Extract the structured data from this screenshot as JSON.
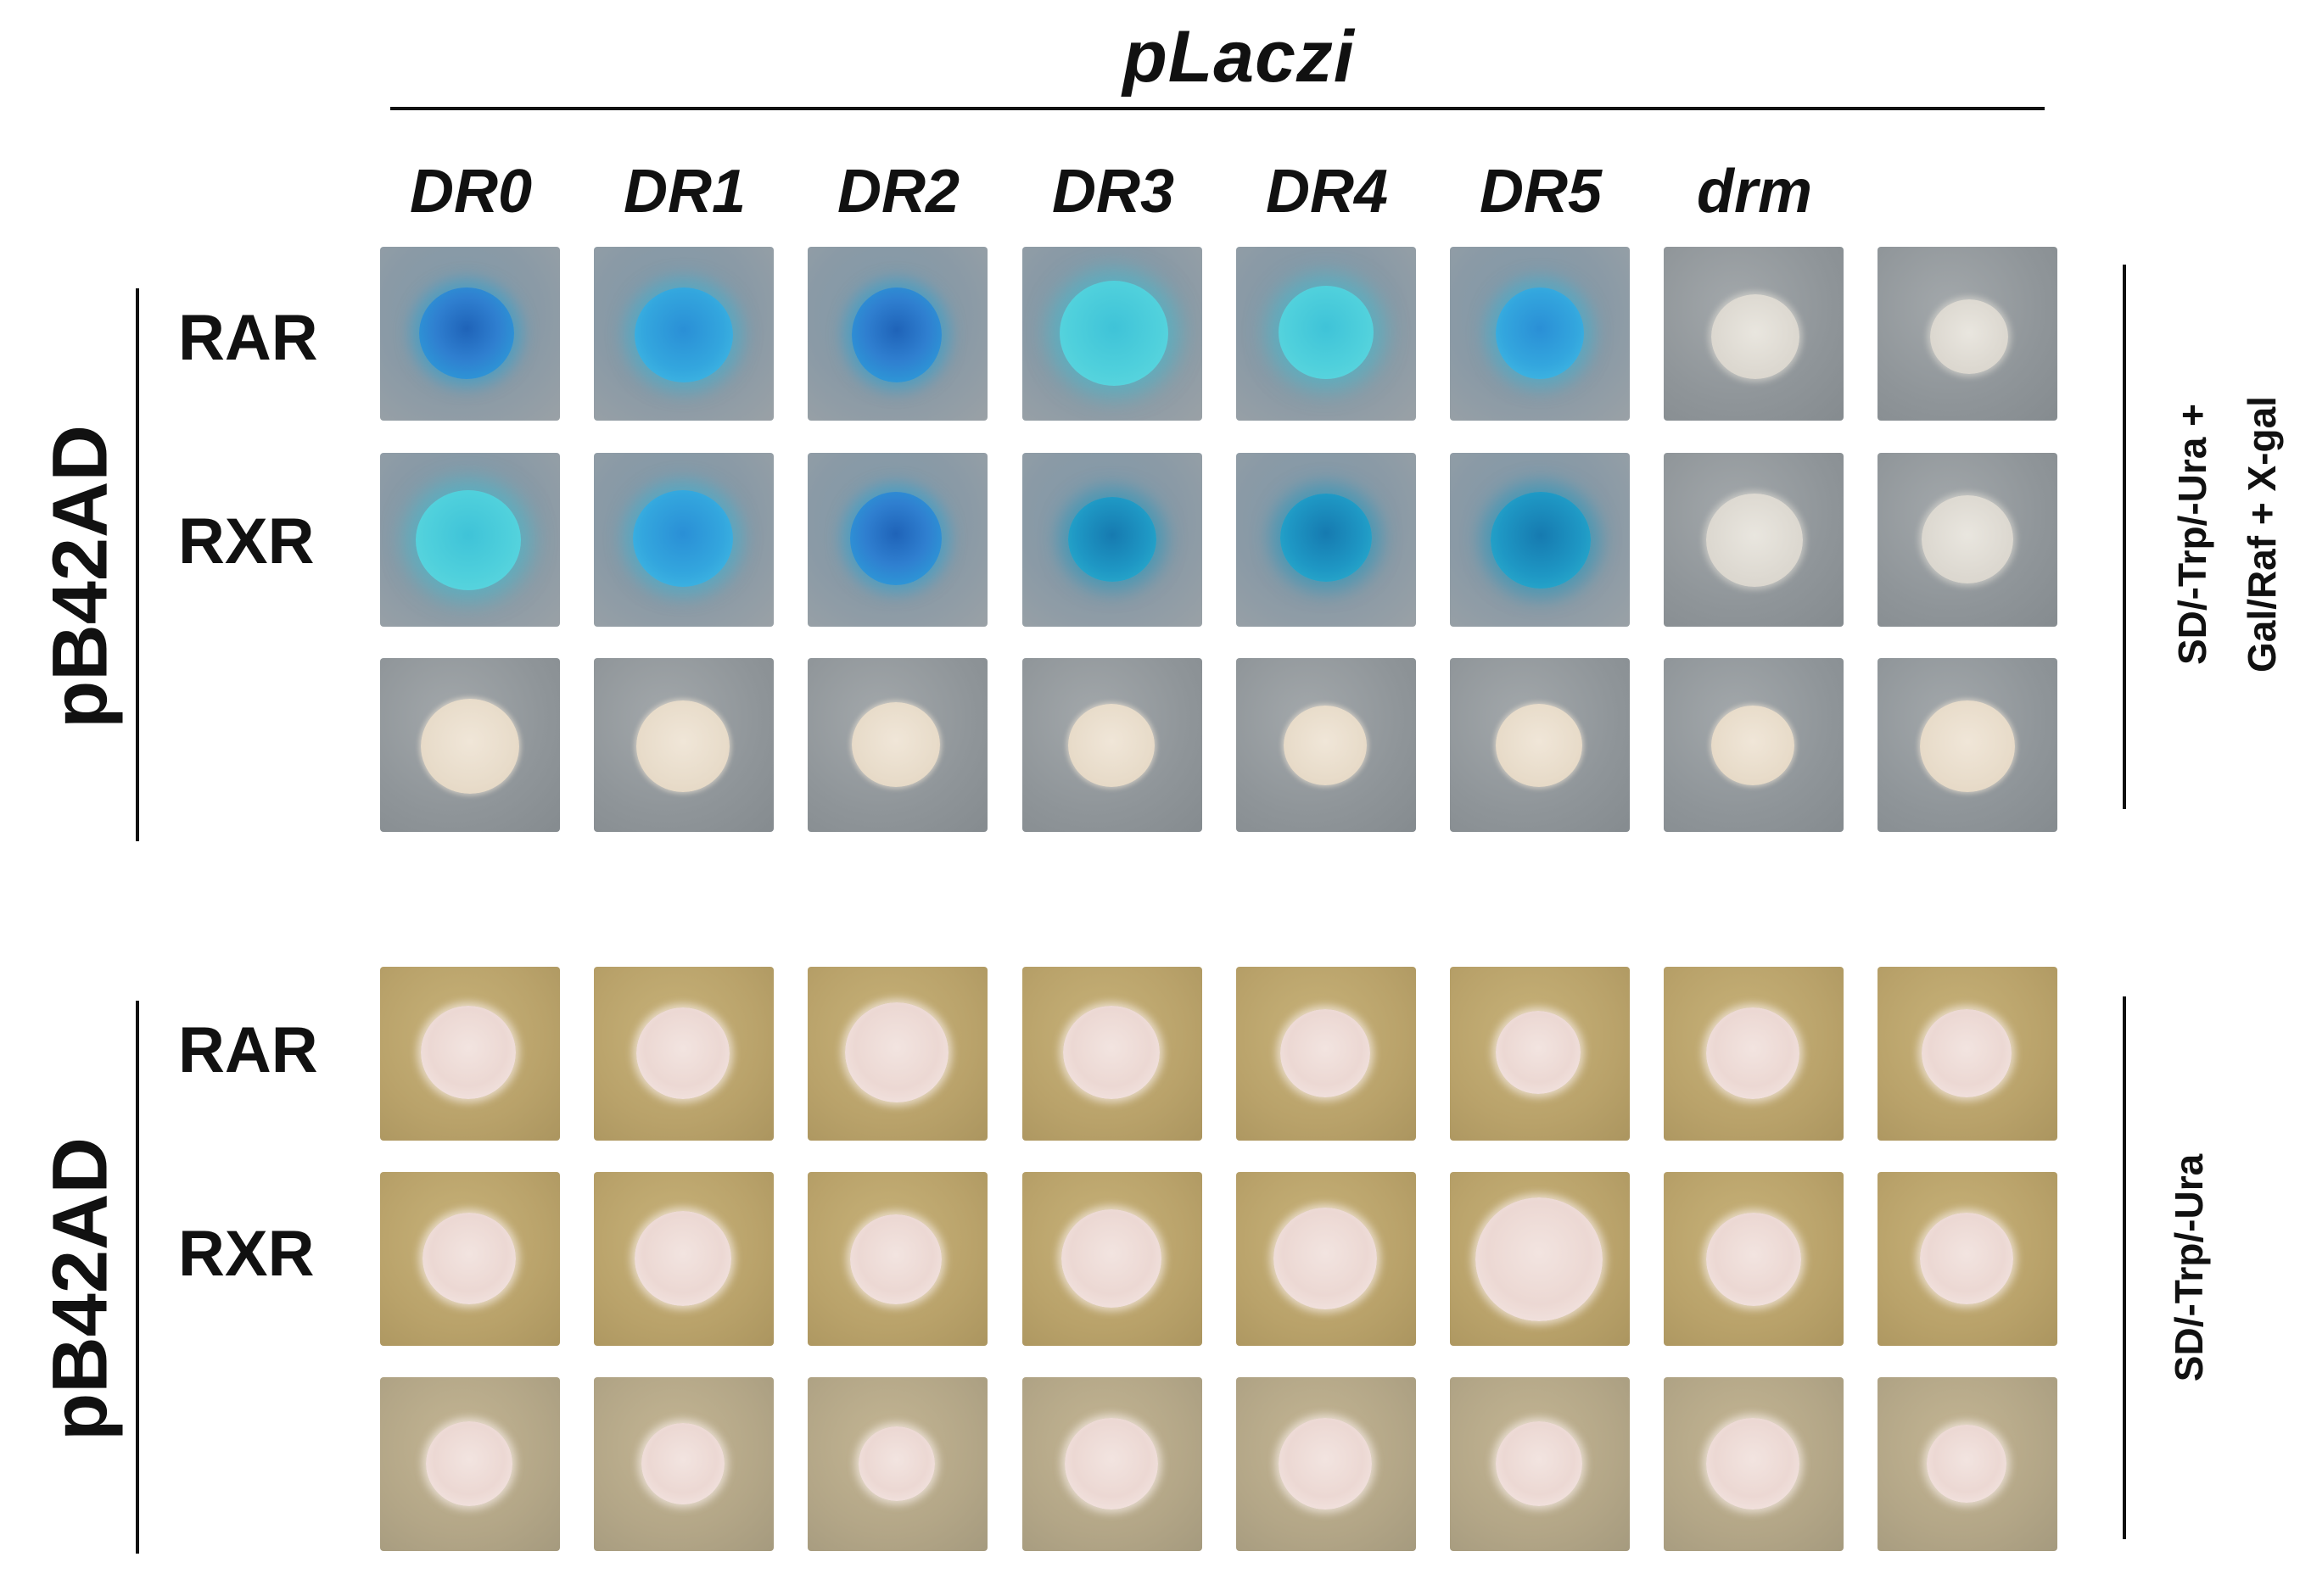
{
  "header": {
    "title": "pLaczi"
  },
  "columns": [
    "DR0",
    "DR1",
    "DR2",
    "DR3",
    "DR4",
    "DR5",
    "drm",
    ""
  ],
  "panels": [
    {
      "side_label": "pB42AD",
      "rows": [
        "RAR",
        "RXR",
        ""
      ],
      "condition_lines": [
        "SD/-Trp/-Ura +",
        "Gal/Raf + X-gal"
      ]
    },
    {
      "side_label": "pB42AD",
      "rows": [
        "RAR",
        "RXR",
        ""
      ],
      "condition_lines": [
        "SD/-Trp/-Ura"
      ]
    }
  ],
  "colors": {
    "blue_colony": "#2f7fd0",
    "cyan_colony": "#4fd0dc",
    "white_colony": "#e9e6df",
    "selection_plate": "#b9a26a",
    "xgal_plate": "#8f9599"
  }
}
